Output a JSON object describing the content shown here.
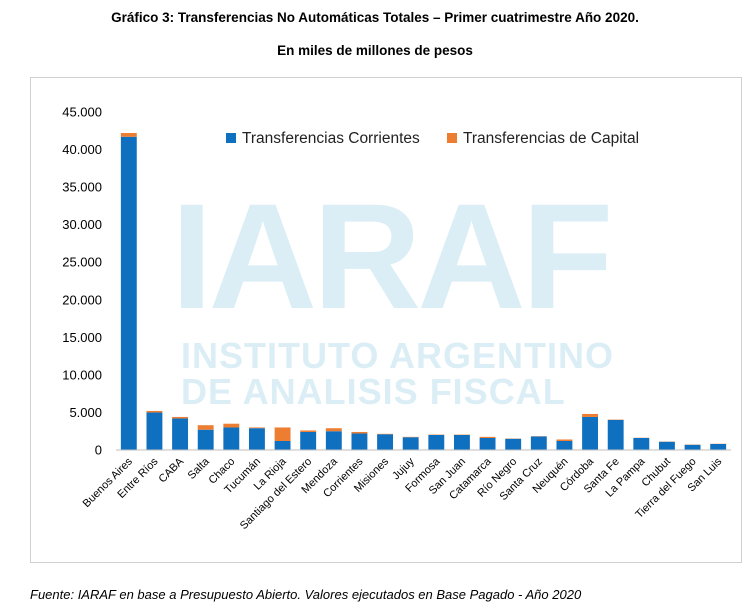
{
  "title": "Gráfico 3: Transferencias No Automáticas Totales – Primer cuatrimestre Año 2020.",
  "subtitle": "En miles de millones de pesos",
  "source": "Fuente: IARAF en base a Presupuesto Abierto. Valores ejecutados en Base Pagado - Año 2020",
  "watermark": {
    "line1": "IARAF",
    "line2": "INSTITUTO ARGENTINO",
    "line3": "DE ANALISIS FISCAL"
  },
  "chart_data": {
    "type": "bar",
    "stacked": true,
    "title": "Gráfico 3: Transferencias No Automáticas Totales – Primer cuatrimestre Año 2020.",
    "subtitle": "En miles de millones de pesos",
    "categories": [
      "Buenos Aires",
      "Entre Ríos",
      "CABA",
      "Salta",
      "Chaco",
      "Tucumán",
      "La Rioja",
      "Santiago del Estero",
      "Mendoza",
      "Corrientes",
      "Misiones",
      "Jujuy",
      "Formosa",
      "San Juan",
      "Catamarca",
      "Río Negro",
      "Santa Cruz",
      "Neuquén",
      "Córdoba",
      "Santa Fe",
      "La Pampa",
      "Chubut",
      "Tierra del Fuego",
      "San Luis"
    ],
    "series": [
      {
        "name": "Transferencias Corrientes",
        "color": "#1070c0",
        "values": [
          41700,
          5000,
          4200,
          2700,
          3000,
          2900,
          1200,
          2400,
          2500,
          2200,
          2100,
          1700,
          2000,
          2000,
          1600,
          1500,
          1800,
          1200,
          4400,
          4000,
          1600,
          1100,
          700,
          800
        ]
      },
      {
        "name": "Transferencias de Capital",
        "color": "#ed7d31",
        "values": [
          500,
          200,
          200,
          600,
          500,
          100,
          1800,
          200,
          400,
          200,
          50,
          50,
          50,
          50,
          150,
          30,
          30,
          200,
          400,
          50,
          30,
          30,
          30,
          30
        ]
      }
    ],
    "yticks": [
      "45.000",
      "40.000",
      "35.000",
      "30.000",
      "25.000",
      "20.000",
      "15.000",
      "10.000",
      "5.000",
      "0"
    ],
    "ylim": [
      0,
      45000
    ],
    "xlabel": "",
    "ylabel": "",
    "legend": "top-right",
    "grid": false
  }
}
